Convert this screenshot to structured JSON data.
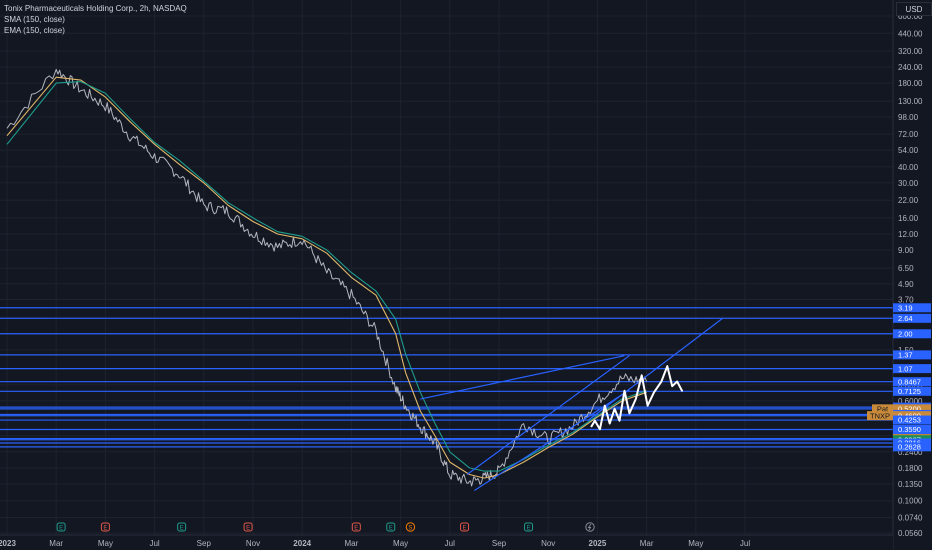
{
  "header": {
    "title": "Tonix Pharmaceuticals Holding Corp., 2h, NASDAQ",
    "sma_label": "SMA (150, close)",
    "ema_label": "EMA (150, close)",
    "currency": "USD"
  },
  "colors": {
    "background": "#131722",
    "grid": "#1e222d",
    "price_line": "#b2b5be",
    "sma": "#e0b86a",
    "ema": "#1e9c8c",
    "horizontal_levels": "#2962ff",
    "channel": "#2962ff",
    "scribble": "#ffffff",
    "tag_blue": "#2962ff",
    "tag_orange": "#c98a3a",
    "tag_green": "#1a8c5a"
  },
  "chart_data": {
    "type": "line",
    "title": "Tonix Pharmaceuticals Holding Corp., 2h, NASDAQ",
    "xlabel": "",
    "ylabel": "",
    "y_scale": "log",
    "ylim": [
      0.056,
      600
    ],
    "x_ticks": [
      "2023",
      "Mar",
      "May",
      "Jul",
      "Sep",
      "Nov",
      "2024",
      "Mar",
      "May",
      "Jul",
      "Sep",
      "Nov",
      "2025",
      "Mar",
      "May",
      "Jul"
    ],
    "x_ticks_bold": [
      "2023",
      "2024",
      "2025"
    ],
    "y_ticks": [
      "600.00",
      "440.00",
      "320.00",
      "240.00",
      "180.00",
      "130.00",
      "98.00",
      "72.00",
      "54.00",
      "40.00",
      "30.00",
      "22.00",
      "16.00",
      "12.00",
      "9.00",
      "6.50",
      "4.90",
      "3.70",
      "2.70",
      "2.00",
      "1.50",
      "1.07",
      "0.8000",
      "0.6000",
      "0.4500",
      "0.3200",
      "0.2400",
      "0.1800",
      "0.1350",
      "0.1000",
      "0.0740",
      "0.0560"
    ],
    "x": [
      0,
      1.0,
      1.5,
      2.0,
      2.5,
      3.0,
      3.5,
      4.0,
      4.5,
      5.0,
      5.5,
      6.0,
      6.5,
      7.0,
      7.5,
      7.9,
      8.1,
      8.4,
      8.7,
      9.0,
      9.4,
      9.7,
      10.0,
      10.5,
      11.0,
      11.5,
      12.0,
      12.5,
      13.0
    ],
    "series": [
      {
        "key": "price",
        "values": [
          80,
          230,
          160,
          120,
          70,
          48,
          35,
          20,
          18,
          12,
          9.5,
          11,
          6.0,
          4.0,
          2.1,
          0.75,
          0.55,
          0.38,
          0.28,
          0.16,
          0.14,
          0.15,
          0.17,
          0.4,
          0.3,
          0.38,
          0.6,
          0.9,
          0.85
        ]
      },
      {
        "key": "sma",
        "values": [
          70,
          200,
          190,
          140,
          90,
          60,
          42,
          30,
          20,
          15,
          12,
          11,
          8.5,
          5.5,
          4.0,
          2.0,
          1.0,
          0.5,
          0.32,
          0.2,
          0.16,
          0.15,
          0.16,
          0.2,
          0.26,
          0.33,
          0.45,
          0.6,
          0.7
        ]
      },
      {
        "key": "ema",
        "values": [
          60,
          180,
          185,
          150,
          95,
          62,
          45,
          31,
          21,
          16,
          12.5,
          11.5,
          9.0,
          6.0,
          4.3,
          2.6,
          1.4,
          0.7,
          0.4,
          0.24,
          0.18,
          0.17,
          0.17,
          0.21,
          0.27,
          0.34,
          0.46,
          0.62,
          0.72
        ]
      }
    ],
    "horizontal_levels": [
      3.19,
      2.64,
      2.0,
      1.37,
      1.07,
      0.8467,
      0.7125,
      0.5362,
      0.52,
      0.4701,
      0.46,
      0.4253,
      0.359,
      0.305,
      0.2987,
      0.2816,
      0.2628
    ],
    "price_tags": [
      {
        "label": "",
        "value": "3.19",
        "y": 3.19,
        "color": "blue"
      },
      {
        "label": "",
        "value": "2.64",
        "y": 2.64,
        "color": "blue"
      },
      {
        "label": "",
        "value": "2.00",
        "y": 2.0,
        "color": "blue"
      },
      {
        "label": "",
        "value": "1.37",
        "y": 1.37,
        "color": "blue"
      },
      {
        "label": "",
        "value": "1.07",
        "y": 1.07,
        "color": "blue"
      },
      {
        "label": "",
        "value": "0.8467",
        "y": 0.8467,
        "color": "blue"
      },
      {
        "label": "",
        "value": "0.7125",
        "y": 0.7125,
        "color": "blue"
      },
      {
        "label": "",
        "value": "0.5362",
        "y": 0.5362,
        "color": "blue"
      },
      {
        "label": "Pat",
        "value": "0.5200",
        "y": 0.52,
        "color": "orange"
      },
      {
        "label": "",
        "value": "0.4701",
        "y": 0.4701,
        "color": "blue"
      },
      {
        "label": "TNXP",
        "value": "0.4600",
        "y": 0.46,
        "color": "orange"
      },
      {
        "label": "",
        "value": "0.4253",
        "y": 0.4253,
        "color": "blue"
      },
      {
        "label": "",
        "value": "0.3590",
        "y": 0.359,
        "color": "blue"
      },
      {
        "label": "",
        "value": "0.3050",
        "y": 0.305,
        "color": "orange"
      },
      {
        "label": "",
        "value": "0.2987",
        "y": 0.2987,
        "color": "green"
      },
      {
        "label": "",
        "value": "0.2816",
        "y": 0.2816,
        "color": "blue"
      },
      {
        "label": "",
        "value": "0.2628",
        "y": 0.2628,
        "color": "blue"
      }
    ],
    "trend_lines": [
      {
        "from": [
          8.4,
          0.62
        ],
        "to": [
          12.55,
          1.35
        ]
      },
      {
        "from": [
          9.35,
          0.16
        ],
        "to": [
          12.65,
          1.35
        ]
      },
      {
        "from": [
          9.5,
          0.12
        ],
        "to": [
          12.65,
          0.73
        ]
      },
      {
        "from": [
          11.8,
          0.42
        ],
        "to": [
          14.55,
          2.65
        ]
      }
    ],
    "events": [
      {
        "x": 1.1,
        "type": "E"
      },
      {
        "x": 2.0,
        "type": "E"
      },
      {
        "x": 3.55,
        "type": "E"
      },
      {
        "x": 4.9,
        "type": "E"
      },
      {
        "x": 7.1,
        "type": "E"
      },
      {
        "x": 7.8,
        "type": "E"
      },
      {
        "x": 8.2,
        "type": "S"
      },
      {
        "x": 9.3,
        "type": "E"
      },
      {
        "x": 10.6,
        "type": "E"
      },
      {
        "x": 11.85,
        "type": "flash"
      }
    ]
  }
}
